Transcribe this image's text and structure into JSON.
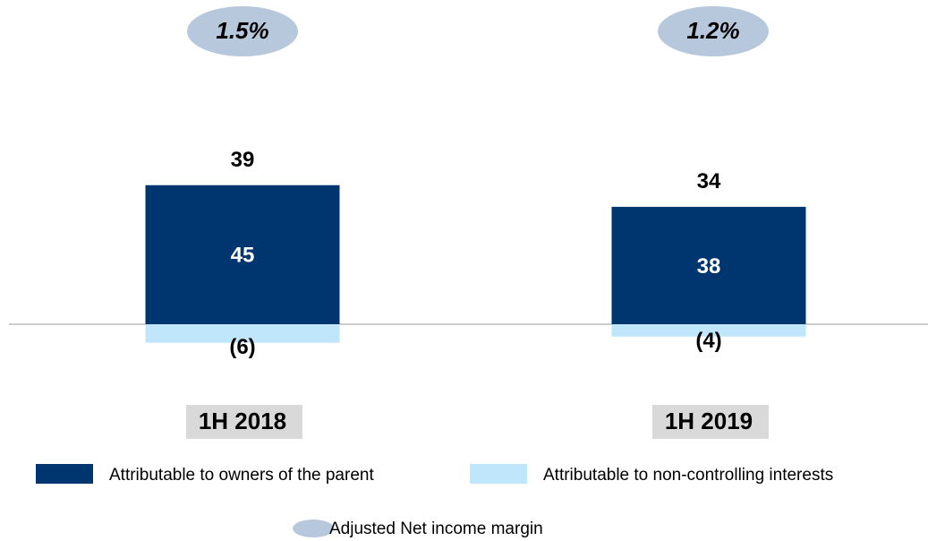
{
  "chart_data": {
    "type": "stacked-bar",
    "categories": [
      "1H 2018",
      "1H 2019"
    ],
    "series": [
      {
        "name": "Attributable to owners of the parent",
        "color": "#003670",
        "values": [
          45,
          38
        ]
      },
      {
        "name": "Attributable to non-controlling interests",
        "color": "#bfe6fa",
        "values": [
          -6,
          -4
        ],
        "value_labels": [
          "(6)",
          "(4)"
        ]
      }
    ],
    "totals": [
      39,
      34
    ],
    "margin": {
      "name": "Adjusted Net income margin",
      "color": "#b8c8dc",
      "values": [
        1.5,
        1.2
      ],
      "value_labels": [
        "1.5%",
        "1.2%"
      ]
    }
  }
}
